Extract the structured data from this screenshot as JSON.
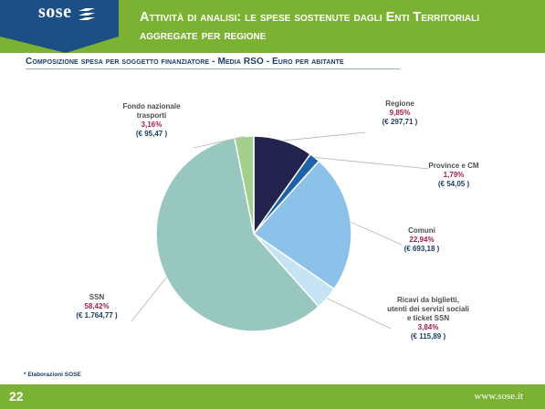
{
  "brand": {
    "logo": "sose",
    "logo_icon": "stacked-lines-icon",
    "website": "www.sose.it"
  },
  "header": {
    "title": "Attività di analisi: le spese sostenute dagli Enti Territoriali aggregate per regione"
  },
  "colors": {
    "green": "#7cb234",
    "navy": "#1c4f86",
    "text_dark": "#1c3d66",
    "label_text": "#4d4d4d",
    "pct_text": "#a0204a"
  },
  "chart_data": {
    "type": "pie",
    "title": "Composizione spesa per soggetto finanziatore - Media RSO - Euro per abitante",
    "series": [
      {
        "label": "Regione",
        "percent": 9.85,
        "percent_text": "9,85%",
        "value": 297.71,
        "value_text": "(€ 297,71 )",
        "color": "#23234f"
      },
      {
        "label": "Province e CM",
        "percent": 1.79,
        "percent_text": "1,79%",
        "value": 54.05,
        "value_text": "(€ 54,05 )",
        "color": "#1f62a8"
      },
      {
        "label": "Comuni",
        "percent": 22.94,
        "percent_text": "22,94%",
        "value": 693.18,
        "value_text": "(€ 693,18 )",
        "color": "#8cc1ea"
      },
      {
        "label": "Ricavi da biglietti, utenti dei servizi sociali e ticket SSN",
        "percent": 3.84,
        "percent_text": "3,84%",
        "value": 115.89,
        "value_text": "(€ 115,89 )",
        "color": "#c6e3f3"
      },
      {
        "label": "SSN",
        "percent": 58.42,
        "percent_text": "58,42%",
        "value": 1764.77,
        "value_text": "(€ 1.764,77 )",
        "color": "#97c7bf"
      },
      {
        "label": "Fondo nazionale trasporti",
        "percent": 3.16,
        "percent_text": "3,16%",
        "value": 95.47,
        "value_text": "(€ 95,47 )",
        "color": "#a3cf8c"
      }
    ]
  },
  "footnote": "* Elaborazioni SOSE",
  "footer": {
    "page_number": "22"
  }
}
